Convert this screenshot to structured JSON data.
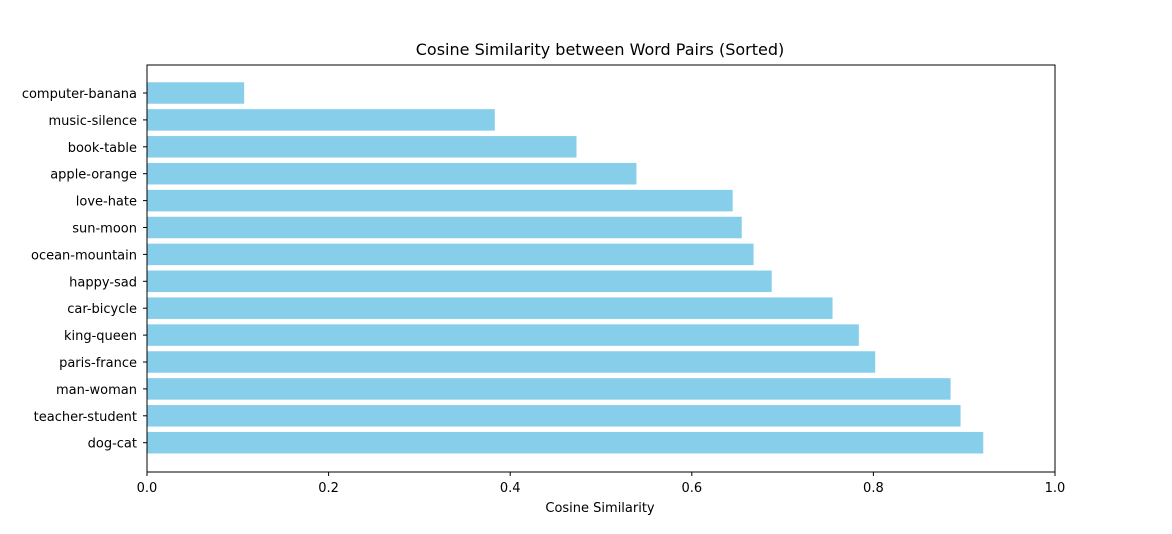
{
  "chart_data": {
    "type": "bar",
    "orientation": "horizontal",
    "title": "Cosine Similarity between Word Pairs (Sorted)",
    "xlabel": "Cosine Similarity",
    "ylabel": "",
    "xlim": [
      0.0,
      1.0
    ],
    "x_ticks": [
      "0.0",
      "0.2",
      "0.4",
      "0.6",
      "0.8",
      "1.0"
    ],
    "categories": [
      "computer-banana",
      "music-silence",
      "book-table",
      "apple-orange",
      "love-hate",
      "sun-moon",
      "ocean-mountain",
      "happy-sad",
      "car-bicycle",
      "king-queen",
      "paris-france",
      "man-woman",
      "teacher-student",
      "dog-cat"
    ],
    "values": [
      0.107,
      0.383,
      0.473,
      0.539,
      0.645,
      0.655,
      0.668,
      0.688,
      0.755,
      0.784,
      0.802,
      0.885,
      0.896,
      0.921
    ],
    "bar_color": "#87ceeb",
    "grid": false,
    "legend": "none"
  }
}
